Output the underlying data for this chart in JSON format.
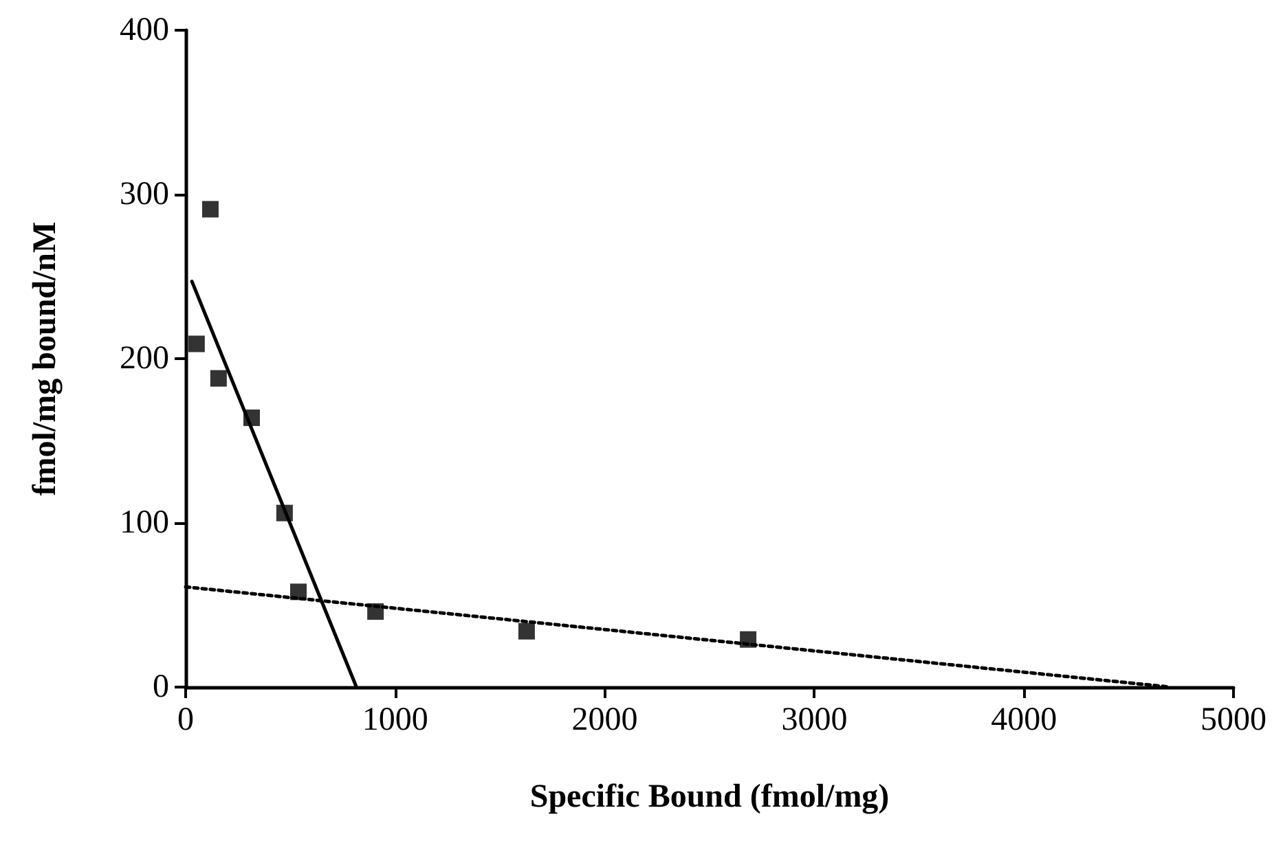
{
  "chart_data": {
    "type": "scatter",
    "xlabel": "Specific Bound (fmol/mg)",
    "ylabel": "fmol/mg bound/nM",
    "xlim": [
      0,
      5000
    ],
    "xticks": [
      0,
      1000,
      2000,
      3000,
      4000,
      5000
    ],
    "ylim": [
      0,
      400
    ],
    "yticks": [
      0,
      100,
      200,
      300,
      400
    ],
    "grid": false,
    "series": [
      {
        "marker": "square",
        "color": "#000000",
        "x": [
          52,
          118,
          157,
          315,
          472,
          538,
          906,
          1627,
          2684
        ],
        "values": [
          209,
          291,
          188,
          164,
          106,
          58,
          46,
          34,
          29
        ]
      },
      {
        "type": "line",
        "marker": "none",
        "line_style": "solid",
        "color": "#000000",
        "x": [
          30,
          815
        ],
        "values": [
          247,
          0
        ]
      },
      {
        "type": "line",
        "marker": "none",
        "line_style": "dotted",
        "color": "#000000",
        "x": [
          0,
          4700
        ],
        "values": [
          61,
          0
        ]
      }
    ]
  }
}
